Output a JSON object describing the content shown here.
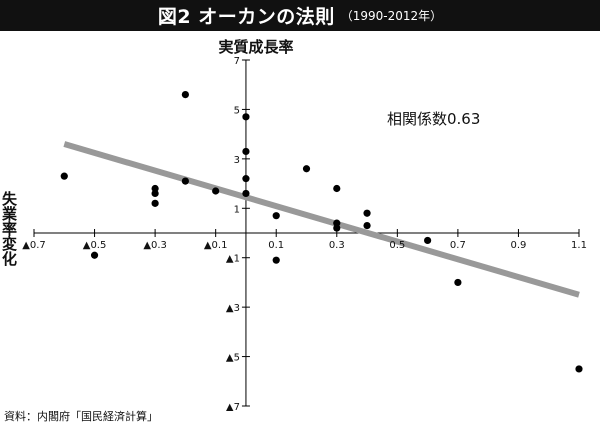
{
  "header": {
    "title": "図2 オーカンの法則",
    "subtitle": "（1990-2012年）"
  },
  "source": "資料：内閣府「国民経済計算」",
  "chart_data": {
    "type": "scatter",
    "title": "図2 オーカンの法則",
    "subtitle": "（1990-2012年）",
    "xlabel": "失業率変化",
    "ylabel": "実質成長率",
    "xlim": [
      -0.7,
      1.1
    ],
    "ylim": [
      -7,
      7
    ],
    "x_ticks": [
      {
        "value": -0.7,
        "label": "▲0.7"
      },
      {
        "value": -0.5,
        "label": "▲0.5"
      },
      {
        "value": -0.3,
        "label": "▲0.3"
      },
      {
        "value": -0.1,
        "label": "▲0.1"
      },
      {
        "value": 0.1,
        "label": "0.1"
      },
      {
        "value": 0.3,
        "label": "0.3"
      },
      {
        "value": 0.5,
        "label": "0.5"
      },
      {
        "value": 0.7,
        "label": "0.7"
      },
      {
        "value": 0.9,
        "label": "0.9"
      },
      {
        "value": 1.1,
        "label": "1.1"
      }
    ],
    "y_ticks": [
      {
        "value": 7,
        "label": "7"
      },
      {
        "value": 5,
        "label": "5"
      },
      {
        "value": 3,
        "label": "3"
      },
      {
        "value": 1,
        "label": "1"
      },
      {
        "value": -1,
        "label": "▲1"
      },
      {
        "value": -3,
        "label": "▲3"
      },
      {
        "value": -5,
        "label": "▲5"
      },
      {
        "value": -7,
        "label": "▲7"
      }
    ],
    "annotation": "相関係数0.63",
    "points": [
      {
        "x": -0.6,
        "y": 2.3
      },
      {
        "x": -0.5,
        "y": -0.9
      },
      {
        "x": -0.3,
        "y": 1.8
      },
      {
        "x": -0.3,
        "y": 1.6
      },
      {
        "x": -0.3,
        "y": 1.2
      },
      {
        "x": -0.2,
        "y": 5.6
      },
      {
        "x": -0.2,
        "y": 2.1
      },
      {
        "x": -0.1,
        "y": 1.7
      },
      {
        "x": 0.0,
        "y": 4.7
      },
      {
        "x": 0.0,
        "y": 3.3
      },
      {
        "x": 0.0,
        "y": 2.2
      },
      {
        "x": 0.0,
        "y": 1.6
      },
      {
        "x": 0.1,
        "y": 0.7
      },
      {
        "x": 0.1,
        "y": -1.1
      },
      {
        "x": 0.2,
        "y": 2.6
      },
      {
        "x": 0.3,
        "y": 1.8
      },
      {
        "x": 0.3,
        "y": 0.4
      },
      {
        "x": 0.3,
        "y": 0.2
      },
      {
        "x": 0.4,
        "y": 0.8
      },
      {
        "x": 0.4,
        "y": 0.3
      },
      {
        "x": 0.6,
        "y": -0.3
      },
      {
        "x": 0.7,
        "y": -2.0
      },
      {
        "x": 1.1,
        "y": -5.5
      }
    ],
    "trendline": {
      "x": [
        -0.6,
        1.1
      ],
      "y": [
        3.6,
        -2.5
      ]
    },
    "colors": {
      "points": "#000000",
      "trendline": "#999999",
      "axis": "#000000",
      "title_bg": "#111111"
    }
  }
}
